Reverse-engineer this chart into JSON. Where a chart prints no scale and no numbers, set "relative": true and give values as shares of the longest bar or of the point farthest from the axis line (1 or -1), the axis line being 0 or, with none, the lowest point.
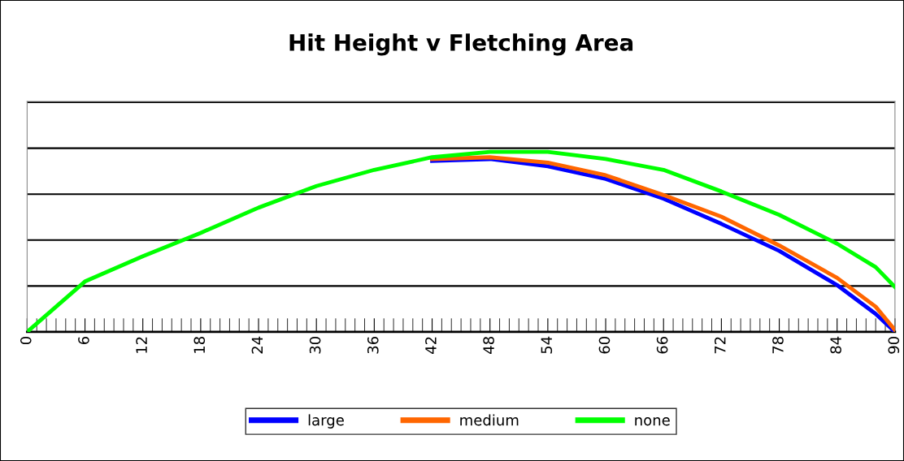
{
  "chart_data": {
    "type": "line",
    "title": "Hit Height v Fletching Area",
    "relative": true,
    "xlim": [
      0,
      90
    ],
    "xticks": [
      0,
      6,
      12,
      18,
      24,
      30,
      36,
      42,
      48,
      54,
      60,
      66,
      72,
      78,
      84,
      90
    ],
    "grid": "y",
    "legend": "bottom",
    "marker": "none",
    "line_style": "solid",
    "series": [
      {
        "name": "large",
        "color": "#0000ff",
        "x": [
          42,
          48,
          54,
          60,
          66,
          72,
          78,
          84,
          88,
          90
        ],
        "values": [
          0.95,
          0.96,
          0.92,
          0.85,
          0.74,
          0.6,
          0.45,
          0.26,
          0.1,
          0
        ]
      },
      {
        "name": "medium",
        "color": "#ff6600",
        "x": [
          42,
          48,
          54,
          60,
          66,
          72,
          78,
          84,
          88,
          90
        ],
        "values": [
          0.96,
          0.97,
          0.94,
          0.87,
          0.76,
          0.64,
          0.48,
          0.3,
          0.14,
          0.01
        ]
      },
      {
        "name": "none",
        "color": "#00ff00",
        "x": [
          0,
          6,
          12,
          18,
          24,
          30,
          36,
          42,
          48,
          52,
          54,
          60,
          66,
          72,
          78,
          84,
          88,
          90
        ],
        "values": [
          0,
          0.28,
          0.42,
          0.55,
          0.69,
          0.81,
          0.9,
          0.97,
          1.0,
          1.0,
          1.0,
          0.96,
          0.9,
          0.78,
          0.65,
          0.49,
          0.36,
          0.25
        ]
      }
    ]
  }
}
